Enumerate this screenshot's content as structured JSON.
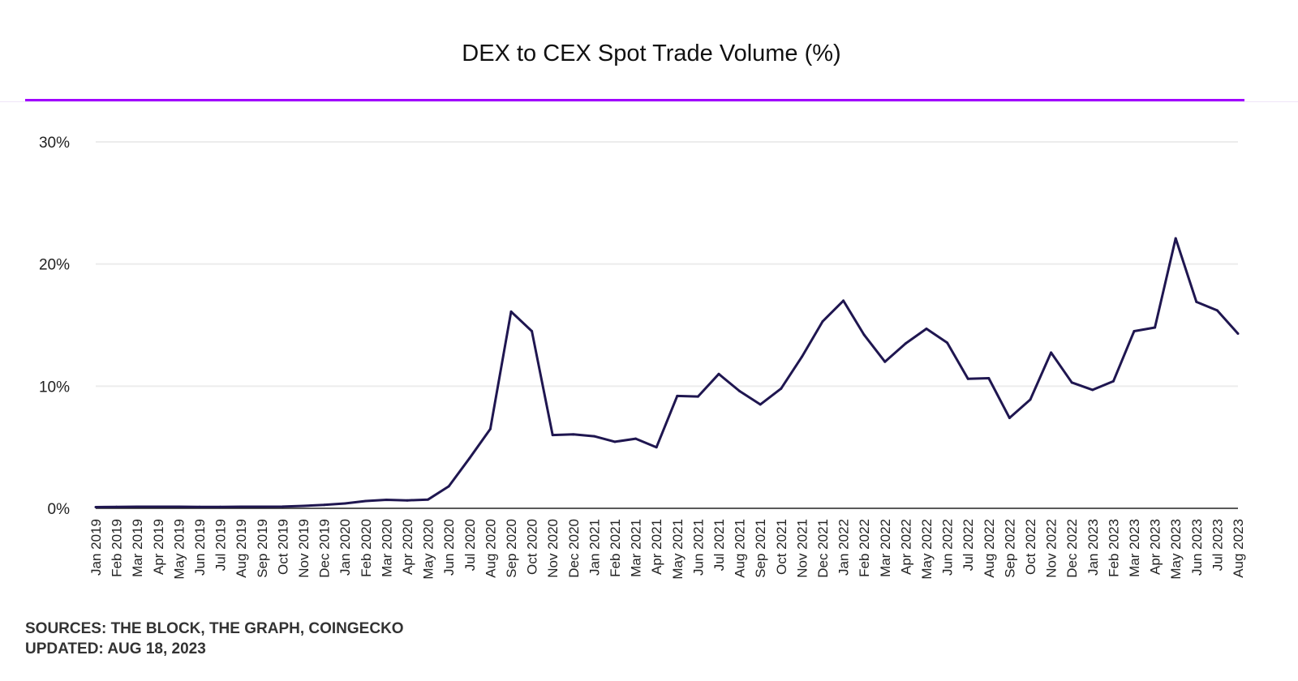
{
  "chart_data": {
    "type": "line",
    "title": "DEX to CEX Spot Trade Volume (%)",
    "xlabel": "",
    "ylabel": "",
    "ylim": [
      0,
      30
    ],
    "yticks": [
      "0%",
      "10%",
      "20%",
      "30%"
    ],
    "ytick_values": [
      0,
      10,
      20,
      30
    ],
    "grid": true,
    "categories": [
      "Jan 2019",
      "Feb 2019",
      "Mar 2019",
      "Apr 2019",
      "May 2019",
      "Jun 2019",
      "Jul 2019",
      "Aug 2019",
      "Sep 2019",
      "Oct 2019",
      "Nov 2019",
      "Dec 2019",
      "Jan 2020",
      "Feb 2020",
      "Mar 2020",
      "Apr 2020",
      "May 2020",
      "Jun 2020",
      "Jul 2020",
      "Aug 2020",
      "Sep 2020",
      "Oct 2020",
      "Nov 2020",
      "Dec 2020",
      "Jan 2021",
      "Feb 2021",
      "Mar 2021",
      "Apr 2021",
      "May 2021",
      "Jun 2021",
      "Jul 2021",
      "Aug 2021",
      "Sep 2021",
      "Oct 2021",
      "Nov 2021",
      "Dec 2021",
      "Jan 2022",
      "Feb 2022",
      "Mar 2022",
      "Apr 2022",
      "May 2022",
      "Jun 2022",
      "Jul 2022",
      "Aug 2022",
      "Sep 2022",
      "Oct 2022",
      "Nov 2022",
      "Dec 2022",
      "Jan 2023",
      "Feb 2023",
      "Mar 2023",
      "Apr 2023",
      "May 2023",
      "Jun 2023",
      "Jul 2023",
      "Aug 2023"
    ],
    "series": [
      {
        "name": "DEX to CEX Spot Trade Volume (%)",
        "color": "#1f1650",
        "values": [
          0.1,
          0.12,
          0.13,
          0.13,
          0.13,
          0.12,
          0.12,
          0.13,
          0.13,
          0.14,
          0.2,
          0.28,
          0.4,
          0.6,
          0.7,
          0.65,
          0.72,
          1.8,
          4.1,
          6.5,
          16.1,
          14.5,
          6.0,
          6.05,
          5.9,
          5.45,
          5.7,
          5.0,
          9.2,
          9.15,
          11.0,
          9.6,
          8.5,
          9.8,
          12.4,
          15.3,
          17.0,
          14.2,
          12.0,
          13.5,
          14.7,
          13.55,
          10.6,
          10.65,
          7.4,
          8.9,
          12.75,
          10.3,
          9.7,
          10.4,
          14.5,
          14.8,
          22.1,
          16.9,
          16.2,
          14.3
        ]
      }
    ]
  },
  "footer": {
    "sources": "SOURCES: THE BLOCK, THE GRAPH, COINGECKO",
    "updated": "UPDATED: AUG 18, 2023"
  },
  "colors": {
    "accent_rule": "#a000ff",
    "line": "#1f1650",
    "grid": "#ececec"
  }
}
